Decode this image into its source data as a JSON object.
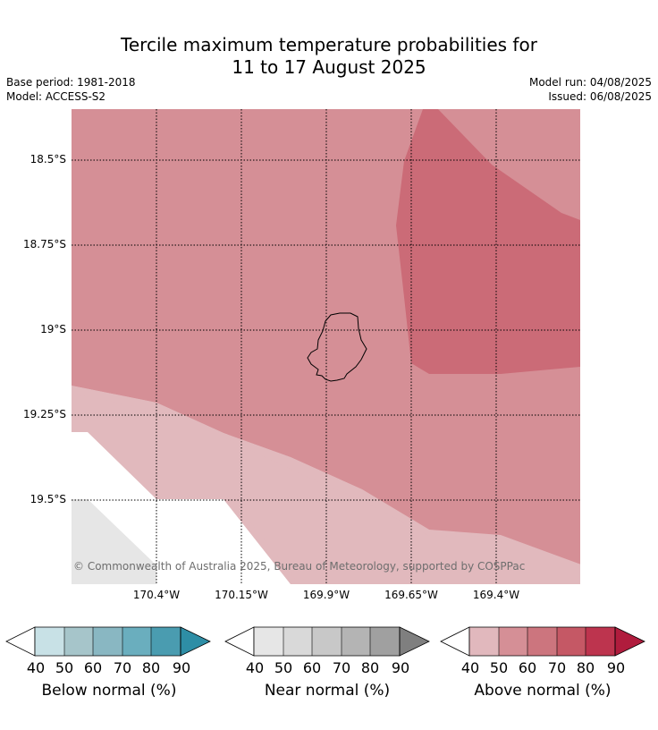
{
  "title_line1": "Tercile maximum temperature probabilities for",
  "title_line2": "11 to 17 August 2025",
  "base_period": "Base period: 1981-2018",
  "model": "Model: ACCESS-S2",
  "model_run": "Model run: 04/08/2025",
  "issued": "Issued: 06/08/2025",
  "lat_labels": [
    "18.5°S",
    "18.75°S",
    "19°S",
    "19.25°S",
    "19.5°S"
  ],
  "lon_labels": [
    "170.4°W",
    "170.15°W",
    "169.9°W",
    "169.65°W",
    "169.4°W"
  ],
  "copyright": "© Commonwealth of Australia 2025, Bureau of Meteorology, supported by COSPPac",
  "legends": [
    {
      "title": "Below normal (%)",
      "ticks": [
        "40",
        "50",
        "60",
        "70",
        "80",
        "90"
      ],
      "colors": [
        "#c8e1e6",
        "#a6c5ca",
        "#89b7c2",
        "#6aaebe",
        "#4a9cb0",
        "#2e8ea6"
      ]
    },
    {
      "title": "Near normal (%)",
      "ticks": [
        "40",
        "50",
        "60",
        "70",
        "80",
        "90"
      ],
      "colors": [
        "#e6e6e6",
        "#d9d9d9",
        "#c8c8c8",
        "#b4b4b4",
        "#a0a0a0",
        "#7f7f7f"
      ]
    },
    {
      "title": "Above normal (%)",
      "ticks": [
        "40",
        "50",
        "60",
        "70",
        "80",
        "90"
      ],
      "colors": [
        "#e1b8bd",
        "#d58f96",
        "#cc757e",
        "#c55865",
        "#bd344e",
        "#b01c3d"
      ]
    }
  ],
  "region_colors": {
    "above_40": "#e1b9bd",
    "above_50": "#d58f96",
    "above_60": "#cb6b77",
    "near_40": "#e6e6e6"
  }
}
